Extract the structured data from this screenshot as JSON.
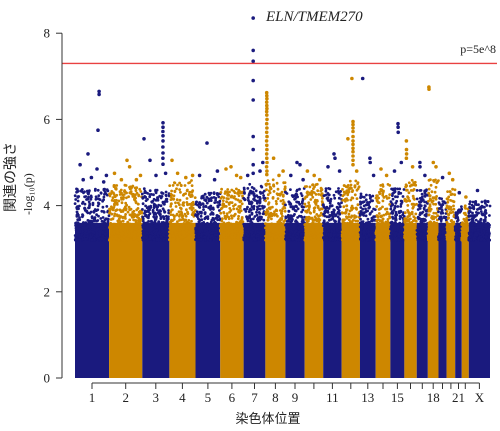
{
  "chart_data": {
    "type": "scatter",
    "subtype": "manhattan",
    "xlabel": "染色体位置",
    "ylabel": "関連の強さ",
    "ylabel_sub": "-log₁₀(p)",
    "yticks": [
      0,
      2,
      4,
      6,
      8
    ],
    "ylim": [
      0,
      8
    ],
    "grid": false,
    "legend": "none",
    "threshold": {
      "value": 7.3,
      "label": "p=5e^8",
      "color": "#e94141"
    },
    "annotation": {
      "text": "ELN/TMEM270"
    },
    "colors": {
      "odd_chromosomes": "#1a1a7e",
      "even_chromosomes": "#cd8700"
    },
    "dense_top": 3.6,
    "chromosomes": [
      {
        "tick_label": "1",
        "length_mb": 249.3,
        "band_top": 4.4,
        "points": [
          [
            176,
            6.65
          ],
          [
            176.6,
            6.58
          ],
          [
            168,
            5.75
          ],
          [
            95,
            5.2
          ],
          [
            37,
            4.95
          ],
          [
            161,
            4.85
          ],
          [
            120,
            4.65
          ],
          [
            60,
            4.6
          ],
          [
            210,
            4.55
          ],
          [
            230,
            4.7
          ]
        ]
      },
      {
        "tick_label": "2",
        "length_mb": 243.2,
        "band_top": 4.5,
        "points": [
          [
            131,
            5.05
          ],
          [
            150,
            4.9
          ],
          [
            40,
            4.75
          ],
          [
            230,
            4.7
          ],
          [
            200,
            4.6
          ],
          [
            90,
            4.6
          ]
        ]
      },
      {
        "tick_label": "3",
        "length_mb": 198.0,
        "band_top": 4.4,
        "points": [
          [
            151,
            5.92
          ],
          [
            151.5,
            5.82
          ],
          [
            150.5,
            5.72
          ],
          [
            151,
            5.62
          ],
          [
            151.2,
            5.5
          ],
          [
            150.8,
            5.36
          ],
          [
            151,
            5.22
          ],
          [
            150.6,
            5.1
          ],
          [
            151.4,
            4.96
          ],
          [
            12,
            5.55
          ],
          [
            56,
            5.05
          ],
          [
            100,
            4.7
          ],
          [
            170,
            4.75
          ]
        ]
      },
      {
        "tick_label": "4",
        "length_mb": 191.2,
        "band_top": 4.6,
        "points": [
          [
            19,
            5.05
          ],
          [
            60,
            4.75
          ],
          [
            120,
            4.65
          ],
          [
            170,
            4.7
          ]
        ]
      },
      {
        "tick_label": "5",
        "length_mb": 180.9,
        "band_top": 4.3,
        "points": [
          [
            84,
            5.45
          ],
          [
            30,
            4.7
          ],
          [
            140,
            4.6
          ],
          [
            160,
            4.8
          ]
        ]
      },
      {
        "tick_label": "6",
        "length_mb": 171.1,
        "band_top": 4.4,
        "points": [
          [
            42,
            4.85
          ],
          [
            79,
            4.9
          ],
          [
            120,
            4.7
          ],
          [
            150,
            4.65
          ]
        ]
      },
      {
        "tick_label": "7",
        "length_mb": 159.1,
        "band_top": 4.5,
        "points": [
          [
            70,
            8.35
          ],
          [
            70.3,
            7.6
          ],
          [
            70.1,
            7.35
          ],
          [
            69.8,
            6.9
          ],
          [
            70.2,
            6.45
          ],
          [
            70,
            5.6
          ],
          [
            70.4,
            5.3
          ],
          [
            69.9,
            4.95
          ],
          [
            70.1,
            4.75
          ],
          [
            30,
            4.7
          ],
          [
            120,
            4.8
          ],
          [
            140,
            5.0
          ]
        ]
      },
      {
        "tick_label": "8",
        "length_mb": 146.4,
        "band_top": 4.6,
        "points": [
          [
            10,
            6.62
          ],
          [
            10.5,
            6.55
          ],
          [
            11,
            6.48
          ],
          [
            9.5,
            6.4
          ],
          [
            10.2,
            6.32
          ],
          [
            11.3,
            6.25
          ],
          [
            9.8,
            6.18
          ],
          [
            10.6,
            6.1
          ],
          [
            11.6,
            6.0
          ],
          [
            9.4,
            5.9
          ],
          [
            10.9,
            5.8
          ],
          [
            10.1,
            5.7
          ],
          [
            11.8,
            5.6
          ],
          [
            9.2,
            5.5
          ],
          [
            10.4,
            5.4
          ],
          [
            11.2,
            5.3
          ],
          [
            9.7,
            5.2
          ],
          [
            10.8,
            5.1
          ],
          [
            12.2,
            5.0
          ],
          [
            9.0,
            4.9
          ],
          [
            11.5,
            4.8
          ],
          [
            10.3,
            4.72
          ],
          [
            60,
            5.1
          ],
          [
            100,
            4.7
          ],
          [
            130,
            4.8
          ]
        ]
      },
      {
        "tick_label": "9",
        "length_mb": 141.2,
        "band_top": 4.4,
        "points": [
          [
            85,
            5.0
          ],
          [
            107,
            4.95
          ],
          [
            40,
            4.7
          ],
          [
            130,
            4.6
          ]
        ]
      },
      {
        "tick_label": "",
        "length_mb": 135.5,
        "band_top": 4.5,
        "points": [
          [
            20,
            4.8
          ],
          [
            70,
            4.7
          ],
          [
            110,
            4.6
          ]
        ]
      },
      {
        "tick_label": "11",
        "length_mb": 135.0,
        "band_top": 4.4,
        "points": [
          [
            79,
            5.2
          ],
          [
            86,
            5.1
          ],
          [
            35,
            4.9
          ],
          [
            120,
            4.8
          ]
        ]
      },
      {
        "tick_label": "",
        "length_mb": 133.9,
        "band_top": 4.6,
        "points": [
          [
            75,
            6.95
          ],
          [
            83,
            5.95
          ],
          [
            83.4,
            5.88
          ],
          [
            82.7,
            5.8
          ],
          [
            83,
            5.72
          ],
          [
            83.2,
            5.6
          ],
          [
            82.8,
            5.5
          ],
          [
            83,
            5.42
          ],
          [
            83.3,
            5.33
          ],
          [
            83,
            5.25
          ],
          [
            82.9,
            5.15
          ],
          [
            83.1,
            5.05
          ],
          [
            82.8,
            4.95
          ],
          [
            46,
            5.55
          ],
          [
            110,
            4.8
          ]
        ]
      },
      {
        "tick_label": "13",
        "length_mb": 115.2,
        "band_top": 4.3,
        "points": [
          [
            20,
            6.95
          ],
          [
            73,
            5.1
          ],
          [
            75,
            5.0
          ],
          [
            100,
            4.7
          ]
        ]
      },
      {
        "tick_label": "",
        "length_mb": 107.3,
        "band_top": 4.5,
        "points": [
          [
            39,
            4.85
          ],
          [
            80,
            4.7
          ]
        ]
      },
      {
        "tick_label": "15",
        "length_mb": 102.5,
        "band_top": 4.4,
        "points": [
          [
            56,
            5.9
          ],
          [
            56.5,
            5.82
          ],
          [
            57,
            5.7
          ],
          [
            80,
            5.0
          ],
          [
            30,
            4.8
          ]
        ]
      },
      {
        "tick_label": "",
        "length_mb": 90.4,
        "band_top": 4.6,
        "points": [
          [
            15,
            5.5
          ],
          [
            15.5,
            5.3
          ],
          [
            16,
            5.2
          ],
          [
            14.5,
            5.1
          ],
          [
            60,
            4.9
          ]
        ]
      },
      {
        "tick_label": "",
        "length_mb": 81.2,
        "band_top": 4.4,
        "points": [
          [
            23,
            5.0
          ],
          [
            24,
            4.9
          ],
          [
            60,
            4.7
          ]
        ]
      },
      {
        "tick_label": "18",
        "length_mb": 78.1,
        "band_top": 4.6,
        "points": [
          [
            8,
            6.75
          ],
          [
            8.5,
            6.7
          ],
          [
            40,
            5.0
          ],
          [
            60,
            4.9
          ]
        ]
      },
      {
        "tick_label": "",
        "length_mb": 59.1,
        "band_top": 4.2,
        "points": [
          [
            30,
            4.65
          ]
        ]
      },
      {
        "tick_label": "",
        "length_mb": 63.0,
        "band_top": 4.4,
        "points": [
          [
            20,
            4.75
          ],
          [
            45,
            4.6
          ]
        ]
      },
      {
        "tick_label": "21",
        "length_mb": 48.1,
        "band_top": 4.0,
        "points": [
          [
            30,
            4.3
          ]
        ]
      },
      {
        "tick_label": "",
        "length_mb": 51.3,
        "band_top": 4.0,
        "points": [
          [
            30,
            4.2
          ]
        ]
      },
      {
        "tick_label": "X",
        "length_mb": 155.3,
        "band_top": 4.1,
        "points": [
          [
            64,
            4.35
          ],
          [
            120,
            4.1
          ]
        ]
      }
    ]
  }
}
